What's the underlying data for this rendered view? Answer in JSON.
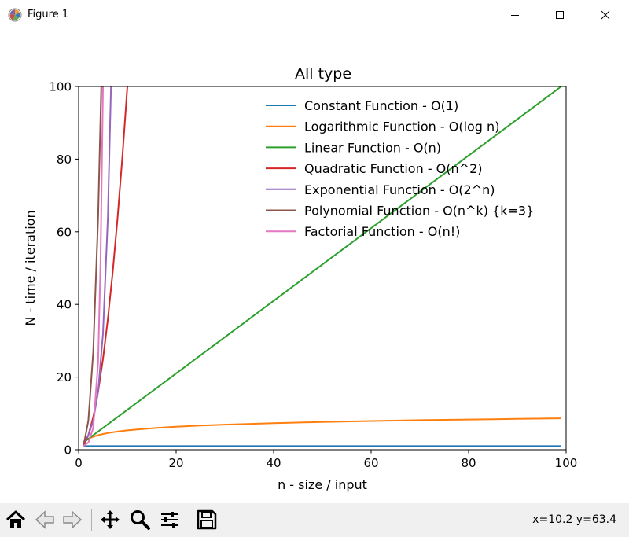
{
  "window": {
    "title": "Figure 1"
  },
  "toolbar": {
    "buttons": [
      "home-icon",
      "back-arrow-icon",
      "forward-arrow-icon",
      "pan-icon",
      "zoom-icon",
      "configure-subplots-icon",
      "save-icon"
    ],
    "coordinates": "x=10.2 y=63.4"
  },
  "chart_data": {
    "type": "line",
    "title": "All type",
    "xlabel": "n - size / input",
    "ylabel": "N - time / iteration",
    "xlim": [
      0,
      100
    ],
    "ylim": [
      0,
      100
    ],
    "xticks": [
      "0",
      "20",
      "40",
      "60",
      "80",
      "100"
    ],
    "yticks": [
      "0",
      "20",
      "40",
      "60",
      "80",
      "100"
    ],
    "legend_position": "upper-center",
    "series": [
      {
        "name": "Constant Function - O(1)",
        "color": "#1f77b4",
        "x": [
          1,
          99
        ],
        "y": [
          1,
          1
        ]
      },
      {
        "name": "Logarithmic Function - O(log n)",
        "color": "#ff7f0e",
        "x": [
          1,
          2,
          3,
          4,
          5,
          6,
          8,
          10,
          13,
          16,
          20,
          25,
          30,
          40,
          50,
          60,
          70,
          80,
          90,
          99
        ],
        "y": [
          2,
          3,
          3.58,
          4,
          4.32,
          4.58,
          5,
          5.32,
          5.7,
          6,
          6.32,
          6.64,
          6.91,
          7.32,
          7.64,
          7.91,
          8.13,
          8.32,
          8.49,
          8.63
        ]
      },
      {
        "name": "Linear Function - O(n)",
        "color": "#2ca02c",
        "x": [
          1,
          99
        ],
        "y": [
          2,
          100
        ]
      },
      {
        "name": "Quadratic Function - O(n^2)",
        "color": "#d62728",
        "x": [
          1,
          2,
          3,
          4,
          5,
          6,
          7,
          8,
          9,
          10
        ],
        "y": [
          1,
          4,
          9,
          16,
          25,
          36,
          49,
          64,
          81,
          100
        ]
      },
      {
        "name": "Exponential Function - O(2^n)",
        "color": "#9467bd",
        "x": [
          1,
          2,
          3,
          4,
          5,
          6,
          6.64
        ],
        "y": [
          2,
          4,
          8,
          16,
          32,
          64,
          100
        ]
      },
      {
        "name": "Polynomial Function - O(n^k) {k=3}",
        "color": "#8c564b",
        "x": [
          1,
          2,
          3,
          4,
          4.64
        ],
        "y": [
          1,
          8,
          27,
          64,
          100
        ]
      },
      {
        "name": "Factorial Function - O(n!)",
        "color": "#e377c2",
        "x": [
          1,
          2,
          3,
          4,
          4.5,
          5
        ],
        "y": [
          1,
          2,
          6,
          24,
          52,
          100
        ]
      }
    ]
  }
}
